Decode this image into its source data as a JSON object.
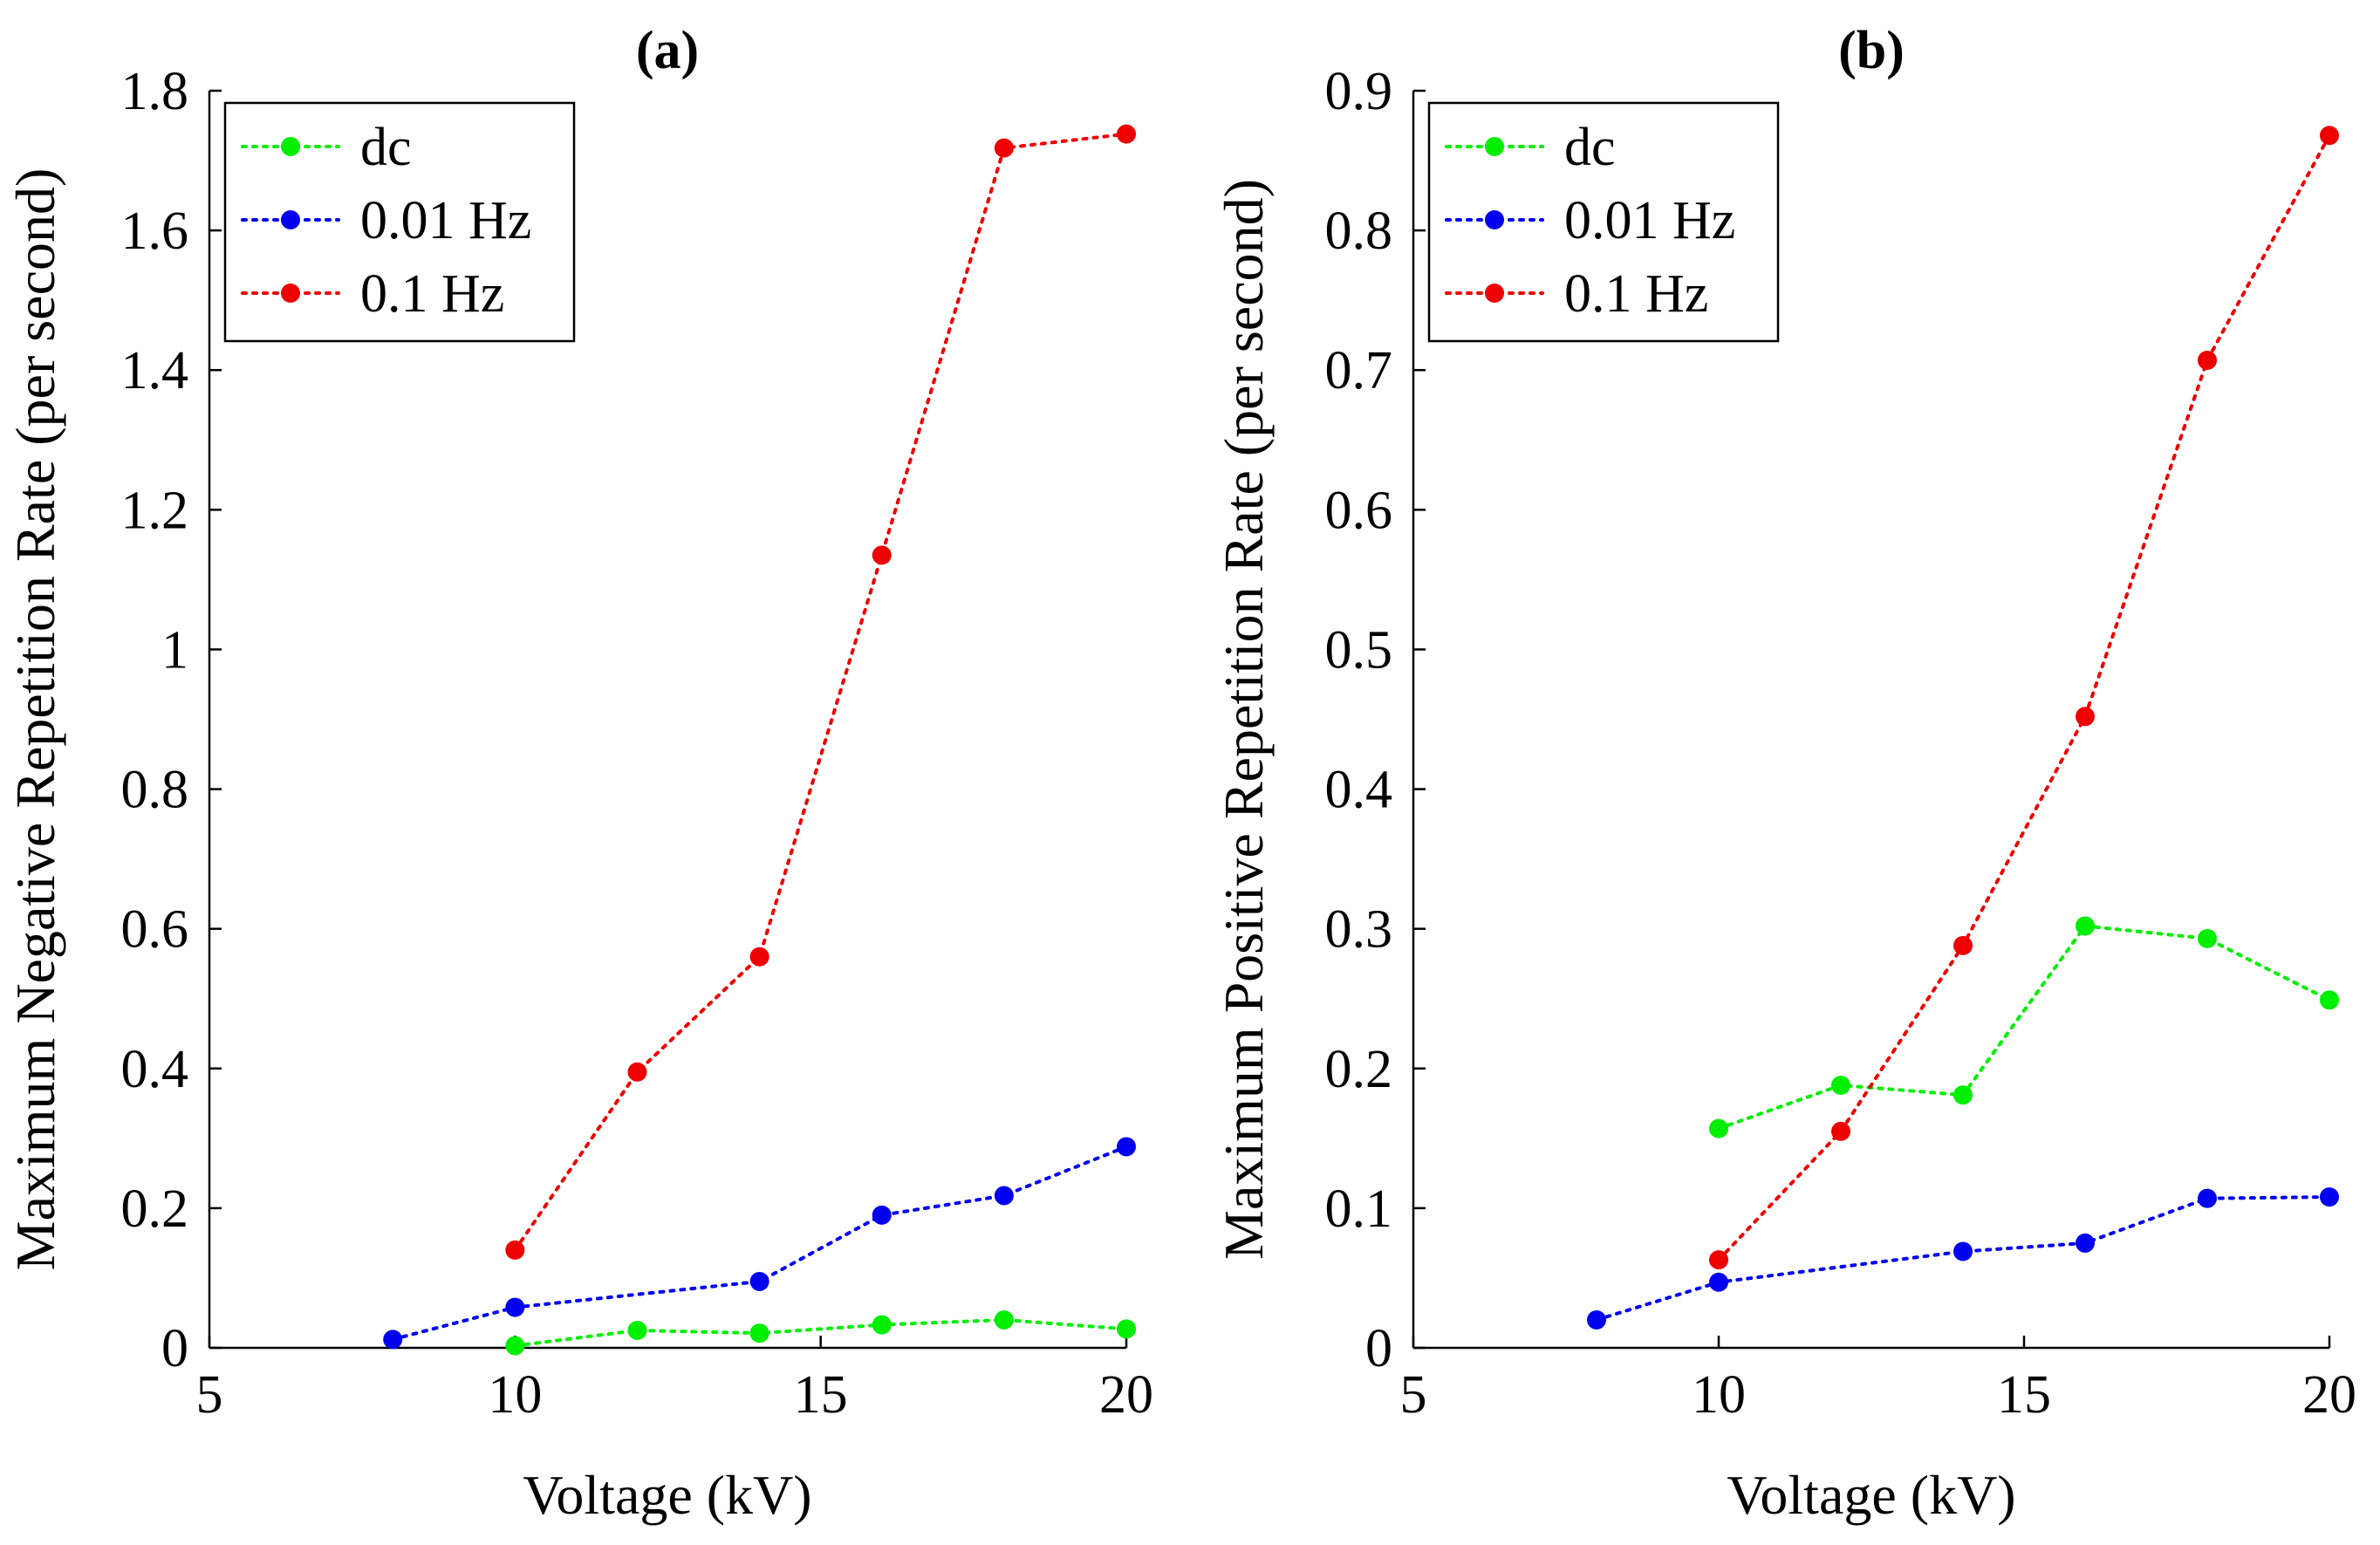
{
  "chart_data": [
    {
      "type": "line",
      "title": "(a)",
      "xlabel": "Voltage (kV)",
      "ylabel": "Maximum Negative Repetition Rate (per second)",
      "xlim": [
        5,
        20
      ],
      "ylim": [
        0,
        1.8
      ],
      "xticks": [
        5,
        10,
        15,
        20
      ],
      "yticks": [
        0,
        0.2,
        0.4,
        0.6,
        0.8,
        1,
        1.2,
        1.4,
        1.6,
        1.8
      ],
      "ytick_labels": [
        "0",
        "0.2",
        "0.4",
        "0.6",
        "0.8",
        "1",
        "1.2",
        "1.4",
        "1.6",
        "1.8"
      ],
      "grid": false,
      "legend_position": "top-left",
      "line_style": "dotted",
      "series": [
        {
          "name": "dc",
          "color": "#00ee00",
          "x": [
            10,
            12,
            14,
            16,
            18,
            20
          ],
          "y": [
            0.003,
            0.025,
            0.021,
            0.033,
            0.04,
            0.027
          ]
        },
        {
          "name": "0.01 Hz",
          "color": "#0000ee",
          "x": [
            8,
            10,
            14,
            16,
            18,
            20
          ],
          "y": [
            0.012,
            0.058,
            0.095,
            0.19,
            0.218,
            0.288
          ]
        },
        {
          "name": "0.1 Hz",
          "color": "#ee0000",
          "x": [
            10,
            12,
            14,
            16,
            18,
            20
          ],
          "y": [
            0.14,
            0.395,
            0.56,
            1.135,
            1.718,
            1.738
          ]
        }
      ]
    },
    {
      "type": "line",
      "title": "(b)",
      "xlabel": "Voltage (kV)",
      "ylabel": "Maximum Positive Repetition Rate (per second)",
      "xlim": [
        5,
        20
      ],
      "ylim": [
        0,
        0.9
      ],
      "xticks": [
        5,
        10,
        15,
        20
      ],
      "yticks": [
        0,
        0.1,
        0.2,
        0.3,
        0.4,
        0.5,
        0.6,
        0.7,
        0.8,
        0.9
      ],
      "ytick_labels": [
        "0",
        "0.1",
        "0.2",
        "0.3",
        "0.4",
        "0.5",
        "0.6",
        "0.7",
        "0.8",
        "0.9"
      ],
      "grid": false,
      "legend_position": "top-left",
      "line_style": "dotted",
      "series": [
        {
          "name": "dc",
          "color": "#00ee00",
          "x": [
            10,
            12,
            14,
            16,
            18,
            20
          ],
          "y": [
            0.157,
            0.188,
            0.181,
            0.302,
            0.293,
            0.249
          ]
        },
        {
          "name": "0.01 Hz",
          "color": "#0000ee",
          "x": [
            8,
            10,
            14,
            16,
            18,
            20
          ],
          "y": [
            0.02,
            0.047,
            0.069,
            0.075,
            0.107,
            0.108
          ]
        },
        {
          "name": "0.1 Hz",
          "color": "#ee0000",
          "x": [
            10,
            12,
            14,
            16,
            18,
            20
          ],
          "y": [
            0.063,
            0.155,
            0.288,
            0.452,
            0.707,
            0.868
          ]
        }
      ]
    }
  ]
}
